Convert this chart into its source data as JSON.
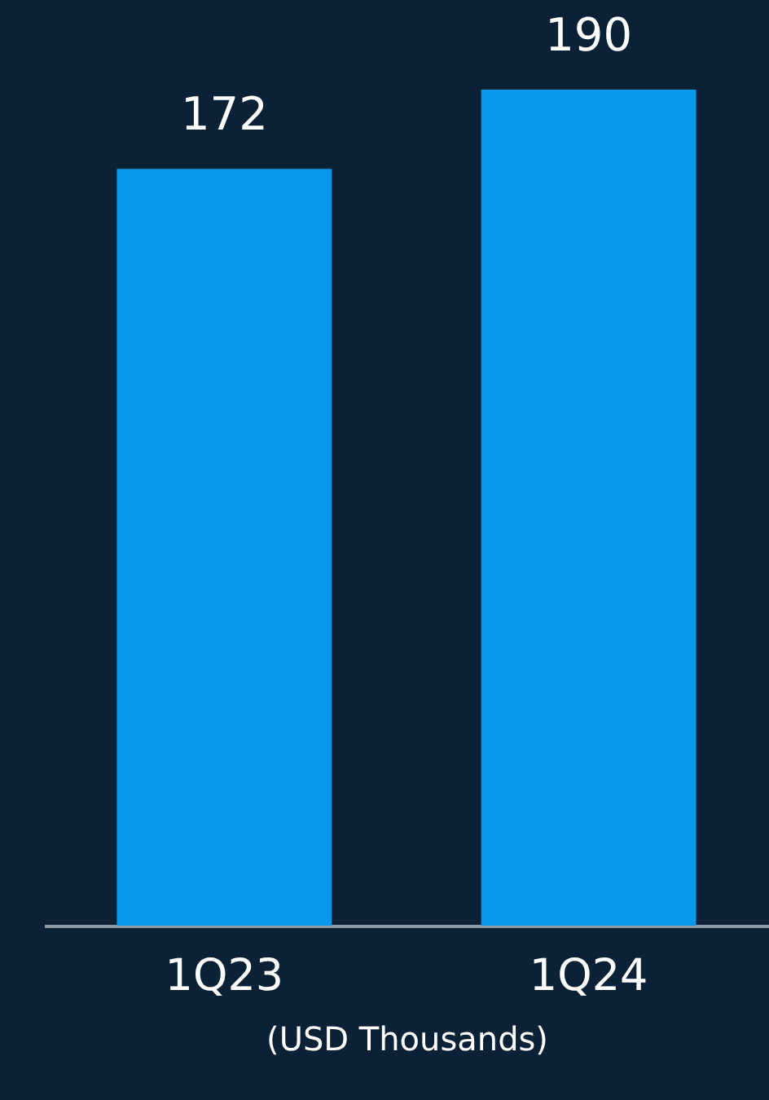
{
  "chart_data": {
    "type": "bar",
    "categories": [
      "1Q23",
      "1Q24"
    ],
    "values": [
      172,
      190
    ],
    "color": "#0a98ea",
    "xlabel": "(USD Thousands)",
    "data_labels": true
  }
}
